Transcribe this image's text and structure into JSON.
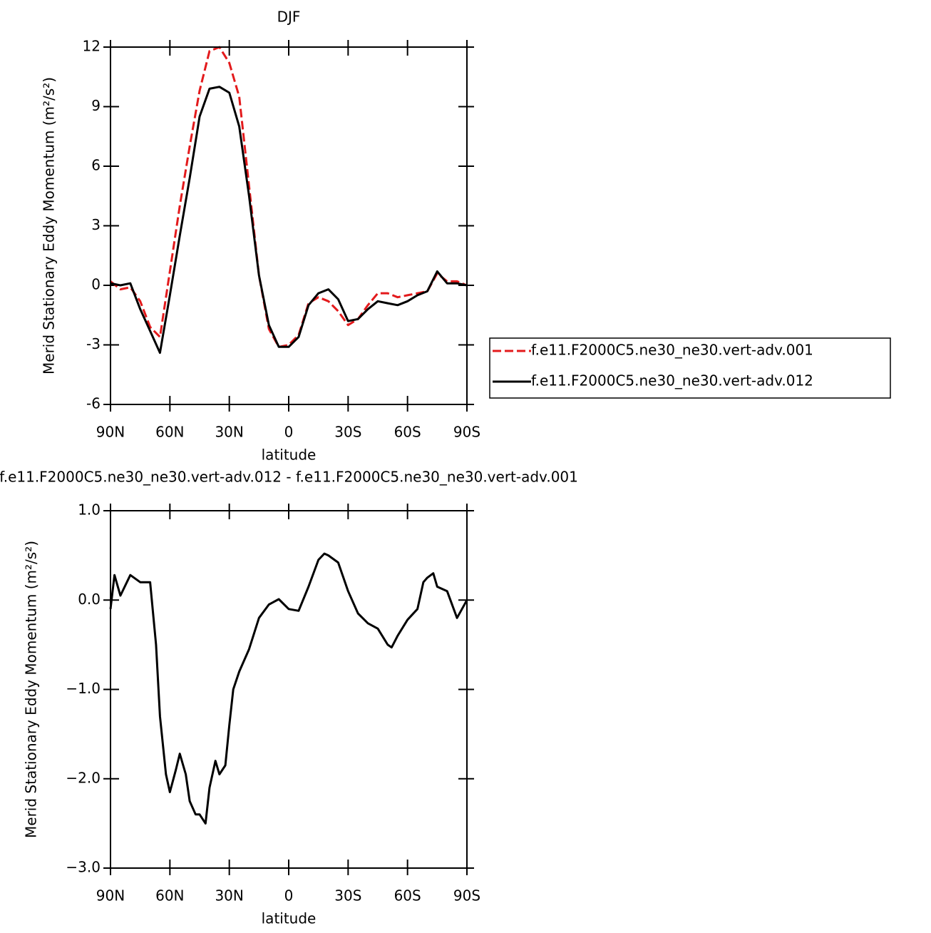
{
  "chart_data": [
    {
      "type": "line",
      "title": "DJF",
      "xlabel": "latitude",
      "ylabel": "Merid Stationary Eddy Momentum (m²/s²)",
      "x": [
        90,
        85,
        80,
        75,
        70,
        65,
        60,
        55,
        50,
        45,
        40,
        35,
        30,
        25,
        20,
        15,
        10,
        5,
        0,
        -5,
        -10,
        -15,
        -20,
        -25,
        -30,
        -35,
        -40,
        -45,
        -50,
        -55,
        -60,
        -65,
        -70,
        -75,
        -80,
        -85,
        -90
      ],
      "xlim": [
        90,
        -90
      ],
      "xticks": [
        {
          "value": 90,
          "label": "90N"
        },
        {
          "value": 60,
          "label": "60N"
        },
        {
          "value": 30,
          "label": "30N"
        },
        0,
        {
          "value": -30,
          "label": "30S"
        },
        {
          "value": -60,
          "label": "60S"
        },
        {
          "value": -90,
          "label": "90S"
        }
      ],
      "ylim": [
        -6,
        12
      ],
      "yticks": [
        -6,
        -3,
        0,
        3,
        6,
        9,
        12
      ],
      "legend": "right",
      "series": [
        {
          "name": "f.e11.F2000C5.ne30_ne30.vert-adv.001",
          "color": "#e31a1c",
          "line_style": "dashed",
          "values": [
            0.2,
            -0.2,
            -0.1,
            -0.8,
            -2.1,
            -2.6,
            0.7,
            4,
            7,
            9.8,
            11.8,
            12,
            11.2,
            9.5,
            5,
            0.5,
            -2.2,
            -3.1,
            -3.0,
            -2.5,
            -0.9,
            -0.6,
            -0.8,
            -1.3,
            -2.0,
            -1.7,
            -1.0,
            -0.4,
            -0.4,
            -0.6,
            -0.5,
            -0.4,
            -0.3,
            0.6,
            0.2,
            0.2,
            0
          ]
        },
        {
          "name": "f.e11.F2000C5.ne30_ne30.vert-adv.012",
          "color": "#000000",
          "line_style": "solid",
          "values": [
            0.1,
            0,
            0.1,
            -1.2,
            -2.3,
            -3.4,
            -0.5,
            2.5,
            5.4,
            8.5,
            9.9,
            10.0,
            9.7,
            8,
            4.5,
            0.5,
            -2,
            -3.1,
            -3.1,
            -2.6,
            -1,
            -0.4,
            -0.2,
            -0.7,
            -1.8,
            -1.7,
            -1.2,
            -0.8,
            -0.9,
            -1.0,
            -0.8,
            -0.5,
            -0.3,
            0.7,
            0.1,
            0.1,
            0
          ]
        }
      ]
    },
    {
      "type": "line",
      "title": "f.e11.F2000C5.ne30_ne30.vert-adv.012 - f.e11.F2000C5.ne30_ne30.vert-adv.001",
      "xlabel": "latitude",
      "ylabel": "Merid Stationary Eddy Momentum (m²/s²)",
      "x": [
        90,
        88,
        85,
        80,
        75,
        70,
        67,
        65,
        62,
        60,
        57,
        55,
        52,
        50,
        47,
        45,
        42,
        40,
        37,
        35,
        32,
        30,
        28,
        25,
        20,
        15,
        10,
        5,
        0,
        -5,
        -10,
        -15,
        -18,
        -20,
        -25,
        -30,
        -35,
        -40,
        -45,
        -50,
        -52,
        -55,
        -60,
        -65,
        -68,
        -70,
        -73,
        -75,
        -80,
        -85,
        -90
      ],
      "xlim": [
        90,
        -90
      ],
      "xticks": [
        {
          "value": 90,
          "label": "90N"
        },
        {
          "value": 60,
          "label": "60N"
        },
        {
          "value": 30,
          "label": "30N"
        },
        0,
        {
          "value": -30,
          "label": "30S"
        },
        {
          "value": -60,
          "label": "60S"
        },
        {
          "value": -90,
          "label": "90S"
        }
      ],
      "ylim": [
        -3,
        1
      ],
      "yticks": [
        {
          "value": -3,
          "label": "−3.0"
        },
        {
          "value": -2,
          "label": "−2.0"
        },
        {
          "value": -1,
          "label": "−1.0"
        },
        {
          "value": 0,
          "label": "0.0"
        },
        {
          "value": 1,
          "label": "1.0"
        }
      ],
      "series": [
        {
          "color": "#000000",
          "line_style": "solid",
          "values": [
            -0.1,
            0.28,
            0.05,
            0.28,
            0.2,
            0.2,
            -0.5,
            -1.3,
            -1.95,
            -2.15,
            -1.9,
            -1.72,
            -1.95,
            -2.25,
            -2.4,
            -2.4,
            -2.5,
            -2.1,
            -1.8,
            -1.95,
            -1.85,
            -1.4,
            -1.0,
            -0.8,
            -0.55,
            -0.2,
            -0.05,
            0.01,
            -0.1,
            -0.12,
            0.15,
            0.45,
            0.52,
            0.5,
            0.42,
            0.1,
            -0.15,
            -0.26,
            -0.32,
            -0.5,
            -0.53,
            -0.4,
            -0.22,
            -0.1,
            0.2,
            0.25,
            0.3,
            0.15,
            0.1,
            -0.2,
            0
          ]
        }
      ]
    }
  ]
}
